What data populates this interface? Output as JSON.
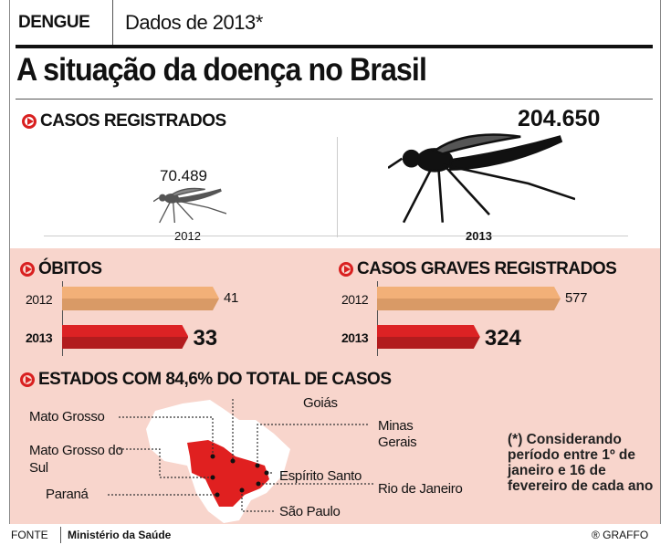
{
  "header": {
    "tag": "DENGUE",
    "subtitle": "Dados de 2013*",
    "title": "A situação da doença no Brasil"
  },
  "chart_data": [
    {
      "type": "pictogram",
      "title": "CASOS REGISTRADOS",
      "categories": [
        "2012",
        "2013"
      ],
      "values": [
        70489,
        204650
      ],
      "value_labels": [
        "70.489",
        "204.650"
      ],
      "icon": "mosquito-icon"
    },
    {
      "type": "bar",
      "orientation": "horizontal",
      "title": "ÓBITOS",
      "categories": [
        "2012",
        "2013"
      ],
      "values": [
        41,
        33
      ],
      "value_labels": [
        "41",
        "33"
      ],
      "colors": [
        "#f2b078",
        "#dc2224"
      ]
    },
    {
      "type": "bar",
      "orientation": "horizontal",
      "title": "CASOS GRAVES REGISTRADOS",
      "categories": [
        "2012",
        "2013"
      ],
      "values": [
        577,
        324
      ],
      "value_labels": [
        "577",
        "324"
      ],
      "colors": [
        "#f2b078",
        "#dc2224"
      ]
    }
  ],
  "map": {
    "title": "ESTADOS COM 84,6% DO TOTAL DE CASOS",
    "states": [
      "Mato Grosso",
      "Goiás",
      "Minas Gerais",
      "Mato Grosso do Sul",
      "Espírito Santo",
      "Rio de Janeiro",
      "Paraná",
      "São Paulo"
    ],
    "highlight_color": "#e02020"
  },
  "note": "(*) Considerando período entre 1º de janeiro e 16 de fevereiro de cada ano",
  "footer": {
    "source_label": "FONTE",
    "source": "Ministério da Saúde",
    "credit": "® GRAFFO"
  },
  "colors": {
    "pink_bg": "#f8d5cc",
    "accent": "#d92020"
  }
}
